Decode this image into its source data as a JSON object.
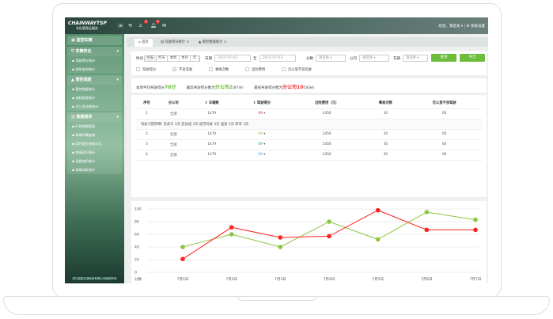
{
  "app": {
    "logo": "CHAINWAYTSP",
    "logo_sub": "车队管理云服务",
    "badges": [
      "8",
      "8"
    ],
    "user": "欢迎，我是某 ▾",
    "settings": "系统设置"
  },
  "sidebar": {
    "groups": [
      {
        "label": "监控车辆",
        "items": []
      },
      {
        "label": "车辆安全",
        "items": [
          "驾驶得分统计",
          "违章查询统计"
        ]
      },
      {
        "label": "管控调度",
        "items": [
          "管控数据统计",
          "油耗数据统计",
          "百公里油耗统计"
        ]
      },
      {
        "label": "数据报表",
        "items": [
          "行车数据报表",
          "车辆详情查询",
          "实时管控油耗对比",
          "车辆运行统计",
          "设备使用统计",
          "车辆成本统计"
        ]
      }
    ],
    "footer": "成为智能交通系统有限公司版权所有"
  },
  "tabs": [
    "首页",
    "驾驶得分统计",
    "管控数据统计"
  ],
  "filters": {
    "time_label": "时间",
    "time_options": [
      "今天",
      "昨天",
      "本周",
      "本月",
      "年"
    ],
    "date_label": "日期",
    "date_from": "2015-07-03",
    "to": "至",
    "date_to": "2015-07-03",
    "score_label": "分数",
    "company_label": "公司",
    "vehicle_label": "车辆",
    "placeholder": "请选择",
    "query": "查询",
    "export": "导出",
    "checkboxes": [
      {
        "label": "驾驶得分",
        "checked": false
      },
      {
        "label": "不良驾驶",
        "checked": true
      },
      {
        "label": "事故次数",
        "checked": false
      },
      {
        "label": "出险费用",
        "checked": false
      },
      {
        "label": "百公里不良驾驶",
        "checked": false
      }
    ]
  },
  "summary": {
    "avg_label": "本周平均驾驶得分",
    "avg": "78分",
    "max_label": "最高驾驶得分数为",
    "max": "分公司2",
    "max_score": "(87分)",
    "min_label": "最低驾驶得分数为",
    "min": "分公司10",
    "min_score": "(56分)"
  },
  "table": {
    "headers": [
      "序号",
      "分公司",
      "车辆数",
      "驾驶得分",
      "出险费用（元）",
      "事故次数",
      "百公里不良驾驶"
    ],
    "rows": [
      [
        "1",
        "全部",
        "1479",
        "89",
        "2456",
        "30",
        "60"
      ],
      [
        "2",
        "全部",
        "1479",
        "89",
        "2456",
        "30",
        "60"
      ],
      [
        "3",
        "全部",
        "1479",
        "89",
        "2456",
        "30",
        "60"
      ],
      [
        "4",
        "全部",
        "1479",
        "89",
        "2456",
        "30",
        "60"
      ]
    ],
    "score_colors": [
      "#e33",
      "#8cc63f",
      "#2aa",
      "#3af"
    ],
    "detail": "驾驶习惯明细:  急刹车 3次   急加速 3次   疲劳驾驶 3次   超速 3次   转弯 3次"
  },
  "chart_data": {
    "type": "line",
    "ylabel": "分数",
    "ylim": [
      0,
      100
    ],
    "yticks": [
      "0",
      "20",
      "40",
      "60",
      "80",
      "100"
    ],
    "categories": [
      "7月1日",
      "7月2日",
      "7月3日",
      "7月4日",
      "7月5日",
      "7月6日",
      "7月7日"
    ],
    "series": [
      {
        "color": "#8cc63f",
        "values": [
          40,
          60,
          40,
          80,
          52,
          95,
          83
        ]
      },
      {
        "color": "#f22",
        "values": [
          21,
          71,
          55,
          57,
          98,
          67,
          67
        ]
      }
    ],
    "legend": [
      "驾驶得分",
      "不良驾驶",
      "事故次数",
      "出险费用",
      "百公里不良驾驶"
    ],
    "legend_placement": "bottom",
    "grid": true
  }
}
